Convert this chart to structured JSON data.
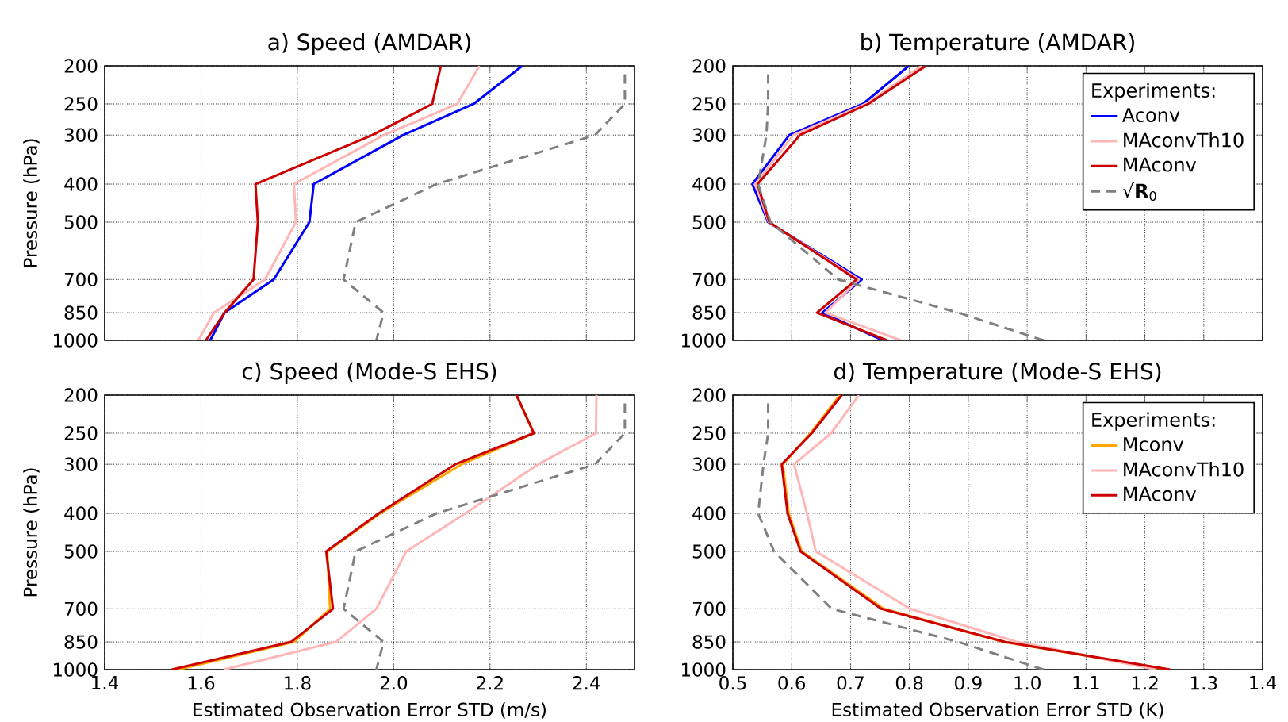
{
  "chart_data": [
    {
      "type": "line",
      "title": "a) Speed (AMDAR)",
      "ylabel": "Pressure (hPa)",
      "xlim": [
        1.4,
        2.5
      ],
      "xticks": [
        1.4,
        1.6,
        1.8,
        2.0,
        2.2,
        2.4
      ],
      "ylim": [
        1000,
        200
      ],
      "yticks": [
        200,
        250,
        300,
        400,
        500,
        700,
        850,
        1000
      ],
      "log": "y",
      "grid": true,
      "tick_labels": "y",
      "series": [
        {
          "color": "#0000ff",
          "x": [
            2.267,
            2.166,
            2.02,
            1.834,
            1.825,
            1.751,
            1.649,
            1.619
          ],
          "values": [
            200,
            250,
            300,
            400,
            500,
            700,
            850,
            1000
          ]
        },
        {
          "color": "#ffb6b6",
          "x": [
            2.178,
            2.132,
            1.98,
            1.793,
            1.797,
            1.733,
            1.627,
            1.594
          ],
          "values": [
            200,
            250,
            300,
            400,
            500,
            700,
            850,
            1000
          ]
        },
        {
          "color": "#cc0000",
          "x": [
            2.098,
            2.08,
            1.956,
            1.713,
            1.718,
            1.709,
            1.649,
            1.61
          ],
          "values": [
            200,
            250,
            300,
            400,
            500,
            700,
            850,
            1000
          ]
        },
        {
          "color": "#808080",
          "line_style": "dashed",
          "x": [
            2.48,
            2.48,
            2.418,
            2.089,
            1.921,
            1.896,
            1.979,
            1.964
          ],
          "values": [
            210,
            250,
            300,
            400,
            500,
            700,
            850,
            1000
          ]
        }
      ]
    },
    {
      "type": "line",
      "title": "b) Temperature (AMDAR)",
      "xlim": [
        0.5,
        1.4
      ],
      "xticks": [
        0.5,
        0.6,
        0.7,
        0.8,
        0.9,
        1.0,
        1.1,
        1.2,
        1.3,
        1.4
      ],
      "ylim": [
        1000,
        200
      ],
      "yticks": [
        200,
        250,
        300,
        400,
        500,
        700,
        850,
        1000
      ],
      "log": "y",
      "grid": true,
      "tick_labels": "y",
      "legend": "top right",
      "legend_title": "Experiments:",
      "series": [
        {
          "name": "Aconv",
          "color": "#0000ff",
          "x": [
            0.799,
            0.721,
            0.596,
            0.533,
            0.56,
            0.719,
            0.652,
            0.755
          ],
          "values": [
            200,
            250,
            300,
            400,
            500,
            700,
            850,
            1000
          ]
        },
        {
          "name": "MAconvTh10",
          "color": "#ffb6b6",
          "x": [
            0.821,
            0.726,
            0.603,
            0.538,
            0.561,
            0.714,
            0.657,
            0.786
          ],
          "values": [
            200,
            250,
            300,
            400,
            500,
            700,
            850,
            1000
          ]
        },
        {
          "name": "MAconv",
          "color": "#cc0000",
          "x": [
            0.828,
            0.73,
            0.614,
            0.542,
            0.562,
            0.71,
            0.643,
            0.762
          ],
          "values": [
            200,
            250,
            300,
            400,
            500,
            700,
            850,
            1000
          ]
        },
        {
          "name": "√**R**$_{0}$",
          "color": "#808080",
          "line_style": "dashed",
          "x": [
            0.56,
            0.56,
            0.557,
            0.543,
            0.564,
            0.679,
            0.883,
            1.028
          ],
          "values": [
            210,
            250,
            300,
            400,
            500,
            700,
            850,
            1000
          ]
        }
      ]
    },
    {
      "type": "line",
      "title": "c) Speed (Mode-S EHS)",
      "xlabel": "Estimated Observation Error STD (m/s)",
      "ylabel": "Pressure (hPa)",
      "xlim": [
        1.4,
        2.5
      ],
      "xticks": [
        1.4,
        1.6,
        1.8,
        {
          "value": 2.0,
          "label": "2.0"
        },
        2.2,
        2.4
      ],
      "ylim": [
        1000,
        200
      ],
      "yticks": [
        200,
        250,
        300,
        400,
        500,
        700,
        850,
        1000
      ],
      "log": "y",
      "grid": true,
      "series": [
        {
          "color": "#ffa500",
          "x": [
            2.255,
            2.291,
            2.141,
            1.972,
            1.862,
            1.868,
            1.793,
            1.552
          ],
          "values": [
            200,
            250,
            300,
            400,
            500,
            700,
            850,
            1000
          ]
        },
        {
          "color": "#ffb6b6",
          "x": [
            2.421,
            2.42,
            2.3,
            2.149,
            2.026,
            1.964,
            1.88,
            1.647
          ],
          "values": [
            200,
            250,
            300,
            400,
            500,
            700,
            850,
            1000
          ]
        },
        {
          "color": "#cc0000",
          "x": [
            2.255,
            2.291,
            2.128,
            1.969,
            1.86,
            1.874,
            1.787,
            1.539
          ],
          "values": [
            200,
            250,
            300,
            400,
            500,
            700,
            850,
            1000
          ]
        },
        {
          "color": "#808080",
          "line_style": "dashed",
          "x": [
            2.48,
            2.48,
            2.418,
            2.089,
            1.921,
            1.896,
            1.979,
            1.964
          ],
          "values": [
            210,
            250,
            300,
            400,
            500,
            700,
            850,
            1000
          ]
        }
      ]
    },
    {
      "type": "line",
      "title": "d) Temperature (Mode-S EHS)",
      "xlabel": "Estimated Observation Error STD (K)",
      "xlim": [
        0.5,
        1.4
      ],
      "xticks": [
        0.5,
        0.6,
        0.7,
        0.8,
        0.9,
        {
          "value": 1.0,
          "label": "1.0"
        },
        1.1,
        1.2,
        1.3,
        1.4
      ],
      "ylim": [
        1000,
        200
      ],
      "yticks": [
        200,
        250,
        300,
        400,
        500,
        700,
        850,
        1000
      ],
      "log": "y",
      "grid": true,
      "legend": "top right",
      "legend_title": "Experiments:",
      "series": [
        {
          "name": "Mconv",
          "color": "#ffa500",
          "x": [
            0.682,
            0.632,
            0.585,
            0.595,
            0.617,
            0.756,
            0.96,
            1.24
          ],
          "values": [
            200,
            250,
            300,
            400,
            500,
            700,
            850,
            1000
          ]
        },
        {
          "name": "MAconvTh10",
          "color": "#ffb6b6",
          "x": [
            0.714,
            0.667,
            0.604,
            0.626,
            0.641,
            0.801,
            0.983,
            1.22
          ],
          "values": [
            200,
            250,
            300,
            400,
            500,
            700,
            850,
            1000
          ]
        },
        {
          "name": "MAconv",
          "color": "#cc0000",
          "x": [
            0.685,
            0.634,
            0.583,
            0.593,
            0.615,
            0.752,
            0.962,
            1.243
          ],
          "values": [
            200,
            250,
            300,
            400,
            500,
            700,
            850,
            1000
          ]
        },
        {
          "color": "#808080",
          "line_style": "dashed",
          "x": [
            0.56,
            0.56,
            0.552,
            0.543,
            0.57,
            0.668,
            0.883,
            1.028
          ],
          "values": [
            210,
            250,
            300,
            400,
            500,
            700,
            850,
            1000
          ]
        }
      ]
    }
  ]
}
